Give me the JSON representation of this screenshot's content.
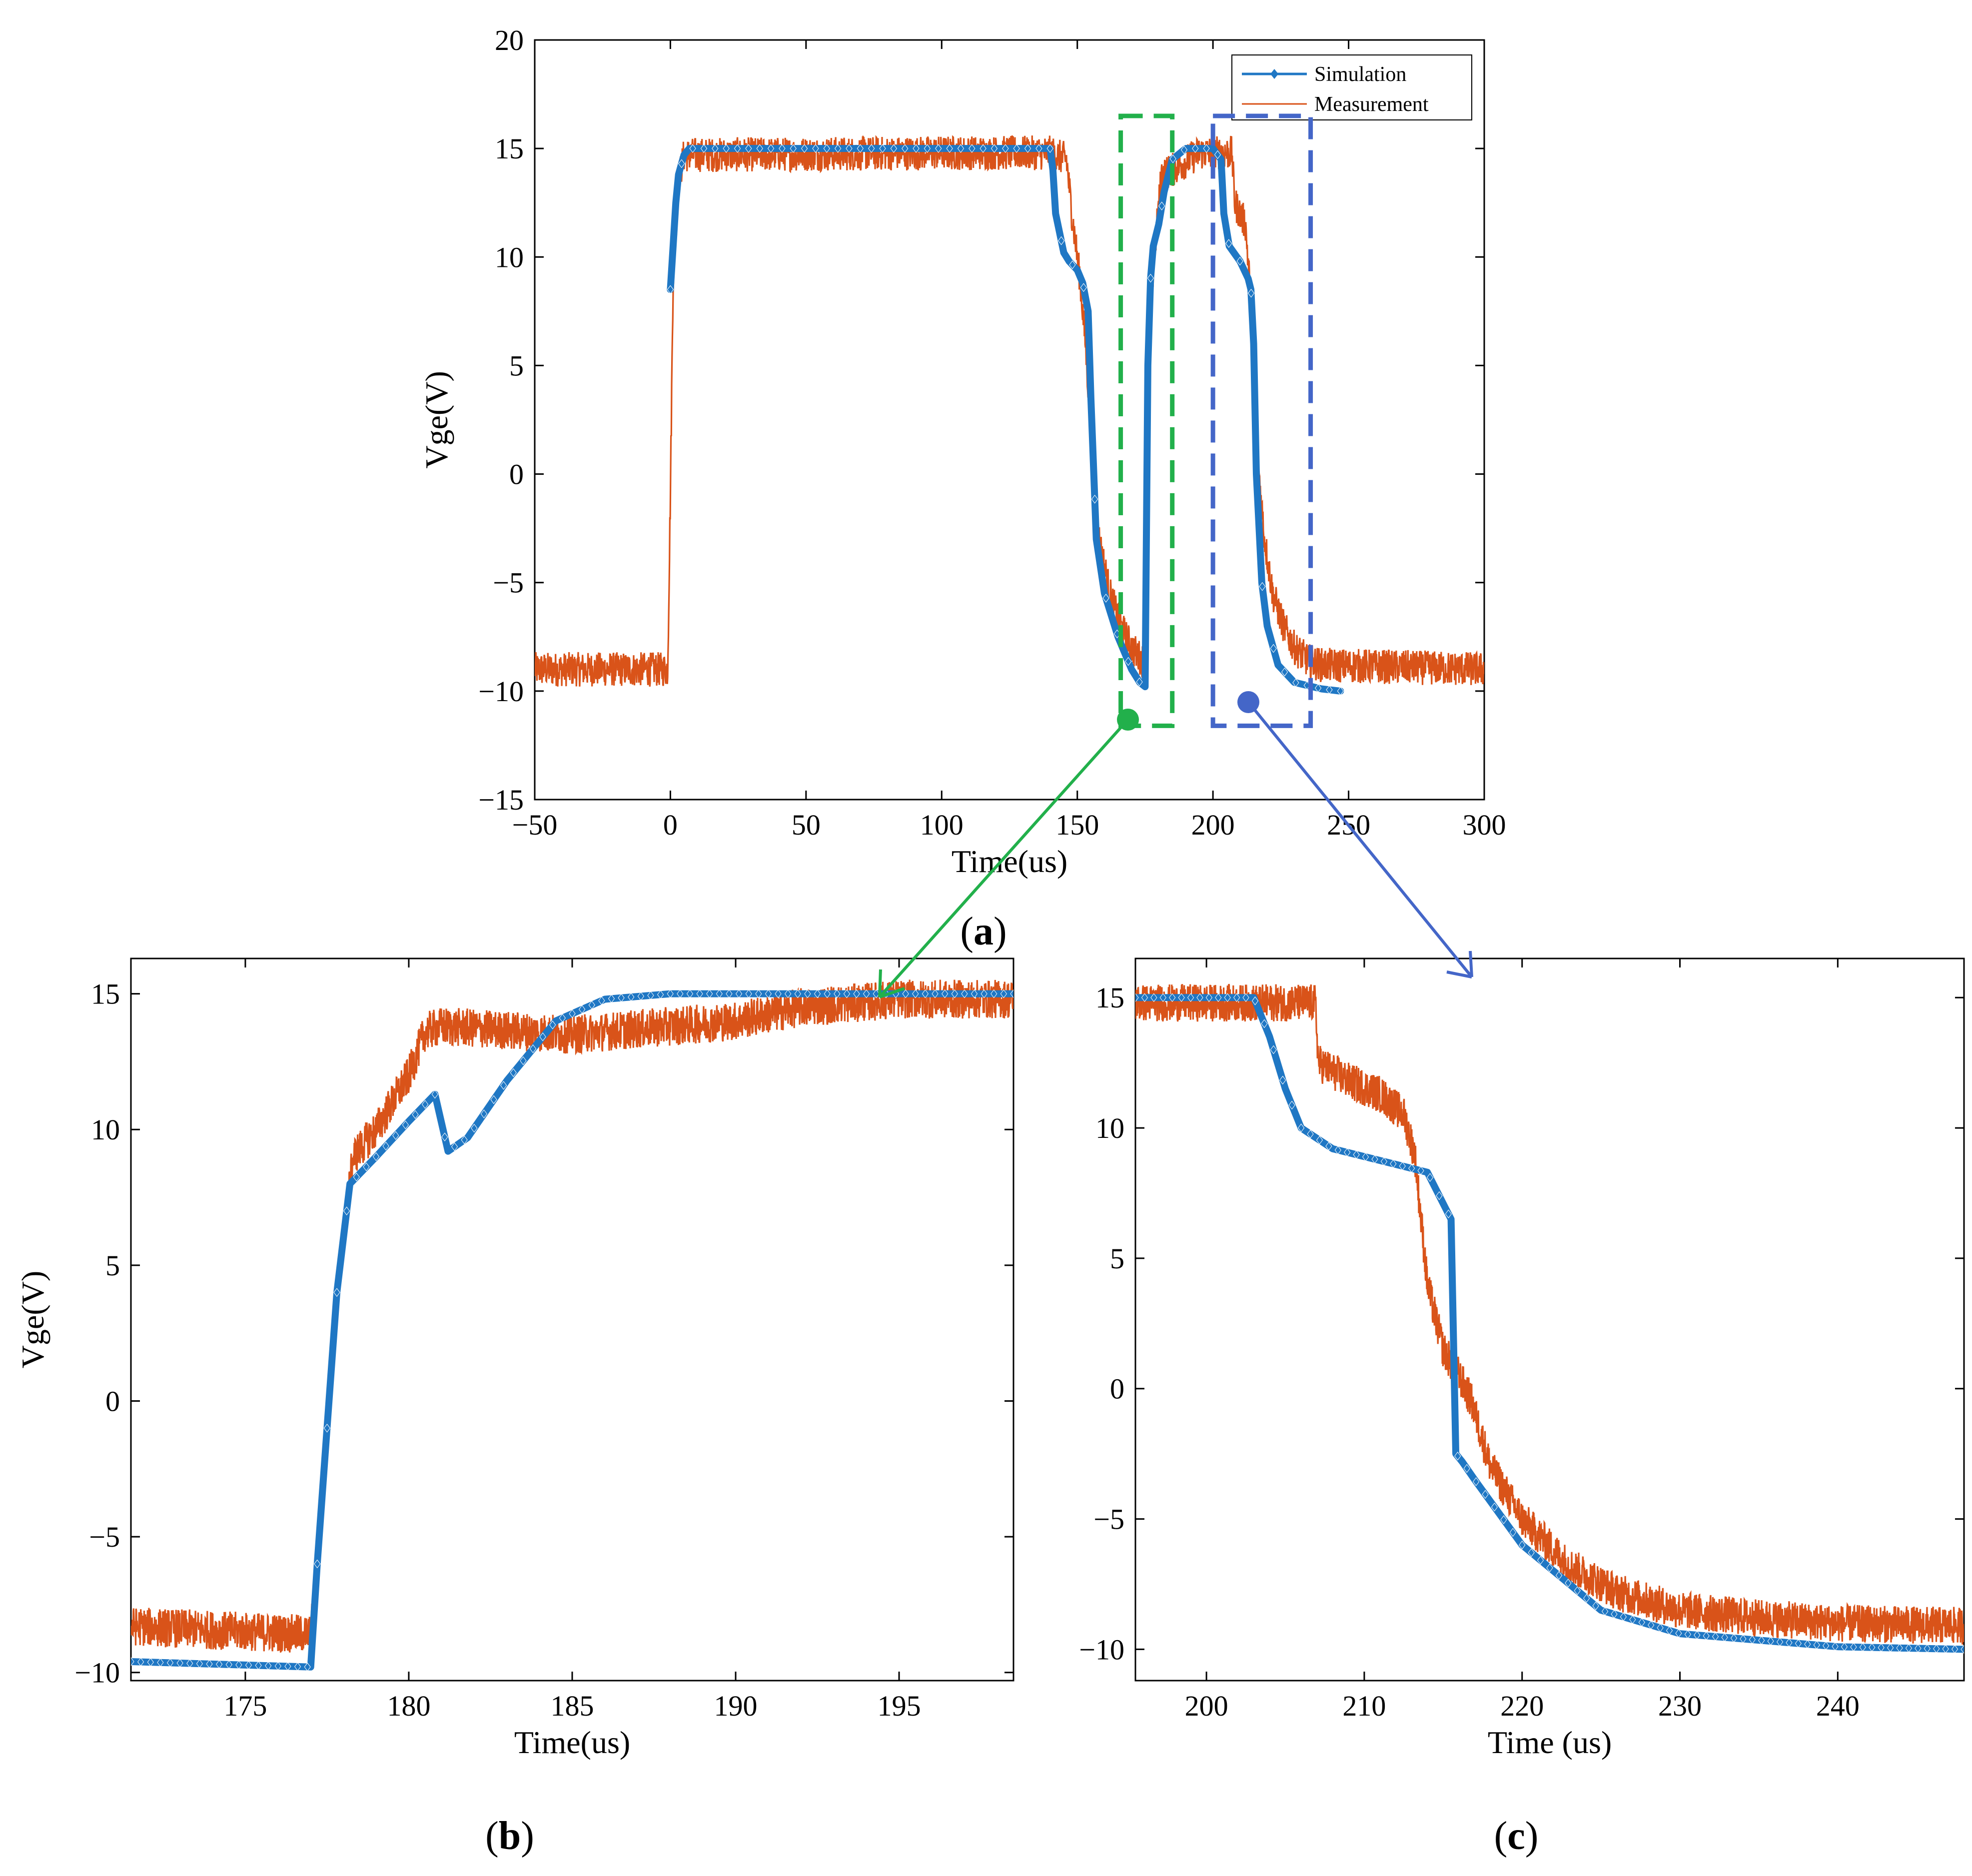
{
  "colors": {
    "simulation": "#1f77c4",
    "measurement": "#d95319",
    "green_box": "#22b04b",
    "blue_box": "#4466c8",
    "axis": "#000000"
  },
  "chart_data": [
    {
      "id": "a",
      "type": "line",
      "panel_label": "(a)",
      "panel_label_letter": "a",
      "xlabel": "Time(us)",
      "ylabel": "Vge(V)",
      "xlim": [
        -50,
        300
      ],
      "ylim": [
        -15,
        20
      ],
      "xticks": [
        -50,
        0,
        50,
        100,
        150,
        200,
        250,
        300
      ],
      "yticks": [
        -15,
        -10,
        -5,
        0,
        5,
        10,
        15,
        20
      ],
      "legend": [
        "Simulation",
        "Measurement"
      ],
      "legend_position": "top-right",
      "series": [
        {
          "name": "Simulation",
          "x": [
            0,
            1,
            2,
            3,
            5,
            7,
            100,
            140,
            141,
            142,
            145,
            147,
            150,
            152,
            154,
            155,
            157,
            160,
            165,
            170,
            173,
            175,
            176,
            177,
            178,
            180,
            182,
            185,
            190,
            200,
            203,
            204,
            206,
            210,
            213,
            214,
            215,
            216,
            218,
            220,
            224,
            230,
            240,
            247
          ],
          "y": [
            8.5,
            10.5,
            12.5,
            13.8,
            14.7,
            15,
            15,
            15,
            14,
            12,
            10.2,
            9.8,
            9.4,
            8.8,
            7.5,
            3.5,
            -3,
            -5.5,
            -7.5,
            -9,
            -9.6,
            -9.8,
            5,
            9,
            10.5,
            11.5,
            13,
            14.5,
            15,
            15,
            14.5,
            12,
            10.5,
            9.8,
            9,
            8.5,
            6,
            0,
            -5,
            -7,
            -8.8,
            -9.6,
            -9.9,
            -10
          ]
        },
        {
          "name": "Measurement",
          "x": [
            -50,
            -1,
            0,
            1,
            3,
            5,
            100,
            140,
            146,
            148,
            149,
            150,
            151,
            153,
            155,
            158,
            162,
            166,
            170,
            174,
            176,
            177,
            178,
            181,
            185,
            195,
            207,
            208,
            212,
            214,
            215,
            216,
            217,
            219,
            222,
            226,
            230,
            235,
            240,
            300
          ],
          "y": [
            -9,
            -9,
            -1,
            9,
            13.5,
            14.7,
            14.8,
            14.8,
            14.5,
            12,
            11,
            10,
            9,
            6,
            2,
            -3,
            -5.5,
            -7,
            -8,
            -8.6,
            -8.7,
            7,
            9.5,
            13.8,
            14,
            14.8,
            14.8,
            12.5,
            11.5,
            8,
            3,
            1,
            0,
            -3,
            -5.5,
            -7,
            -8,
            -8.6,
            -8.8,
            -9
          ]
        }
      ],
      "annotations": [
        {
          "type": "dashed-box",
          "color": "green",
          "x_range": [
            166,
            185
          ],
          "y_range": [
            -11.6,
            16.5
          ]
        },
        {
          "type": "dashed-box",
          "color": "blue",
          "x_range": [
            200,
            236
          ],
          "y_range": [
            -11.6,
            16.5
          ]
        }
      ]
    },
    {
      "id": "b",
      "type": "line",
      "panel_label": "(b)",
      "panel_label_letter": "b",
      "xlabel": "Time(us)",
      "ylabel": "Vge(V)",
      "xlim": [
        171.5,
        198.5
      ],
      "ylim": [
        -10.3,
        16.3
      ],
      "xticks": [
        175,
        180,
        185,
        190,
        195
      ],
      "yticks": [
        -10,
        -5,
        0,
        5,
        10,
        15
      ],
      "series": [
        {
          "name": "Simulation",
          "x": [
            171.5,
            177,
            177.2,
            177.5,
            177.8,
            178.2,
            179,
            180,
            180.8,
            181.2,
            181.8,
            183,
            184.5,
            186,
            188,
            190,
            198.5
          ],
          "y": [
            -9.6,
            -9.8,
            -6,
            -1,
            4,
            8,
            9,
            10.3,
            11.3,
            9.2,
            9.7,
            11.8,
            14,
            14.8,
            15,
            15,
            15
          ]
        },
        {
          "name": "Measurement",
          "x": [
            171.5,
            177,
            177.2,
            177.5,
            178,
            178.3,
            179,
            180,
            180.5,
            181,
            185,
            188,
            190,
            192,
            195,
            198.5
          ],
          "y": [
            -8.3,
            -8.6,
            -6,
            -1,
            6,
            9,
            10,
            12,
            13.6,
            13.8,
            13.5,
            13.8,
            14,
            14.5,
            14.8,
            14.8
          ]
        }
      ]
    },
    {
      "id": "c",
      "type": "line",
      "panel_label": "(c)",
      "panel_label_letter": "c",
      "xlabel": "Time (us)",
      "ylabel": "",
      "xlim": [
        195.5,
        248
      ],
      "ylim": [
        -11.2,
        16.5
      ],
      "xticks": [
        200,
        210,
        220,
        230,
        240
      ],
      "yticks": [
        -10,
        -5,
        0,
        5,
        10,
        15
      ],
      "series": [
        {
          "name": "Simulation",
          "x": [
            195.5,
            203,
            204,
            205,
            206,
            208,
            212,
            214,
            215.5,
            215.8,
            216.2,
            217,
            220,
            225,
            230,
            240,
            248
          ],
          "y": [
            15,
            15,
            13.5,
            11.5,
            10,
            9.2,
            8.6,
            8.3,
            6.5,
            -2.5,
            -2.8,
            -3.5,
            -6,
            -8.5,
            -9.4,
            -9.9,
            -10
          ]
        },
        {
          "name": "Measurement",
          "x": [
            195.5,
            206.9,
            207.1,
            209,
            211,
            212.5,
            213.2,
            214,
            215,
            216,
            216.8,
            218,
            220,
            223,
            226,
            230,
            235,
            240,
            248
          ],
          "y": [
            14.8,
            14.8,
            12.5,
            11.8,
            11.3,
            10.5,
            9,
            4,
            1.5,
            0.5,
            -0.5,
            -3,
            -5,
            -6.8,
            -7.8,
            -8.5,
            -8.8,
            -9,
            -9.1
          ]
        }
      ]
    }
  ]
}
